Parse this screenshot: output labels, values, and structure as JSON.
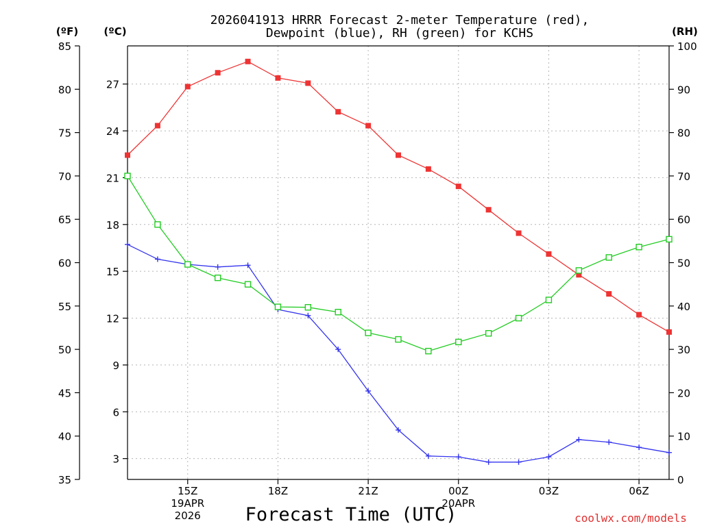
{
  "chart_data": {
    "type": "line",
    "title_line1": "2026041913 HRRR Forecast 2-meter Temperature (red),",
    "title_line2": "Dewpoint (blue), RH (green) for KCHS",
    "xlabel": "Forecast Time (UTC)",
    "watermark": "coolwx.com/models",
    "unit_labels": {
      "fahrenheit": "(ºF)",
      "celsius": "(ºC)",
      "rh": "(RH)"
    },
    "x_hours": [
      13,
      14,
      15,
      16,
      17,
      18,
      19,
      20,
      21,
      22,
      23,
      24,
      25,
      26,
      27,
      28,
      29,
      30,
      31
    ],
    "xlim": [
      13,
      31
    ],
    "x_ticks": [
      {
        "hour": 15,
        "label": "15Z",
        "sublabel1": "19APR",
        "sublabel2": "2026"
      },
      {
        "hour": 18,
        "label": "18Z"
      },
      {
        "hour": 21,
        "label": "21Z"
      },
      {
        "hour": 24,
        "label": "00Z",
        "sublabel1": "20APR"
      },
      {
        "hour": 27,
        "label": "03Z"
      },
      {
        "hour": 30,
        "label": "06Z"
      }
    ],
    "y_fahrenheit": {
      "lim": [
        35,
        85
      ],
      "ticks": [
        35,
        40,
        45,
        50,
        55,
        60,
        65,
        70,
        75,
        80,
        85
      ]
    },
    "y_celsius": {
      "ticks": [
        3,
        6,
        9,
        12,
        15,
        18,
        21,
        24,
        27
      ]
    },
    "y_rh": {
      "lim": [
        0,
        100
      ],
      "ticks": [
        0,
        10,
        20,
        30,
        40,
        50,
        60,
        70,
        80,
        90,
        100
      ]
    },
    "series": [
      {
        "name": "Temperature",
        "units": "degF",
        "axis": "fahrenheit",
        "color": "#ee3333",
        "marker": "filled-square",
        "values": [
          72.4,
          75.8,
          80.3,
          81.9,
          83.2,
          81.3,
          80.7,
          77.4,
          75.8,
          72.4,
          70.8,
          68.8,
          66.1,
          63.4,
          61.0,
          58.6,
          56.4,
          54.0,
          52.0
        ]
      },
      {
        "name": "Dewpoint",
        "units": "degF",
        "axis": "fahrenheit",
        "color": "#3333ee",
        "marker": "plus",
        "values": [
          62.1,
          60.4,
          59.8,
          59.5,
          59.7,
          54.6,
          53.9,
          50.0,
          45.2,
          40.7,
          37.7,
          37.6,
          37.0,
          37.0,
          37.6,
          39.6,
          39.3,
          38.7,
          38.1
        ]
      },
      {
        "name": "Relative Humidity",
        "units": "percent",
        "axis": "rh",
        "color": "#22cc22",
        "marker": "open-square",
        "values": [
          70.0,
          58.8,
          49.6,
          46.5,
          45.0,
          39.8,
          39.7,
          38.6,
          33.8,
          32.3,
          29.6,
          31.7,
          33.7,
          37.2,
          41.4,
          48.2,
          51.2,
          53.6,
          55.4
        ]
      }
    ]
  }
}
